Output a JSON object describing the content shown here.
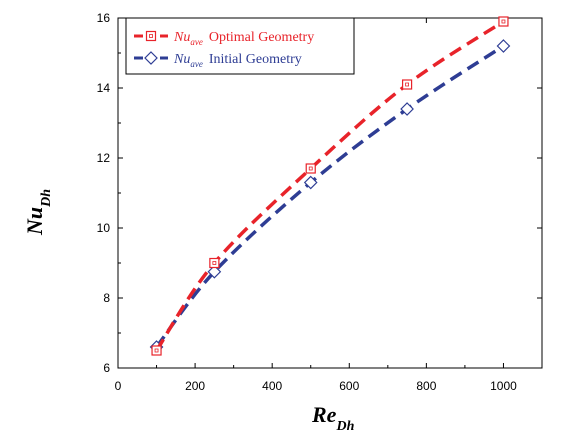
{
  "chart_data": {
    "type": "line",
    "xlabel_main": "Re",
    "xlabel_sub": "Dh",
    "ylabel_main": "Nu",
    "ylabel_sub": "Dh",
    "xlim": [
      0,
      1100
    ],
    "ylim": [
      6,
      16
    ],
    "x_ticks": [
      "0",
      "200",
      "400",
      "600",
      "800",
      "1000"
    ],
    "y_ticks": [
      "6",
      "8",
      "10",
      "12",
      "14",
      "16"
    ],
    "grid": false,
    "legend_position": "top-left",
    "series": [
      {
        "name_symbol": "Nu",
        "name_sub": "ave",
        "name_text": "Optimal Geometry",
        "color": "#e8232a",
        "marker": "square",
        "x": [
          100,
          250,
          500,
          750,
          1000
        ],
        "y": [
          6.5,
          9.0,
          11.7,
          14.1,
          15.9
        ]
      },
      {
        "name_symbol": "Nu",
        "name_sub": "ave",
        "name_text": "Initial Geometry",
        "color": "#2e3d94",
        "marker": "diamond",
        "x": [
          100,
          250,
          500,
          750,
          1000
        ],
        "y": [
          6.6,
          8.75,
          11.3,
          13.4,
          15.2
        ]
      }
    ]
  }
}
